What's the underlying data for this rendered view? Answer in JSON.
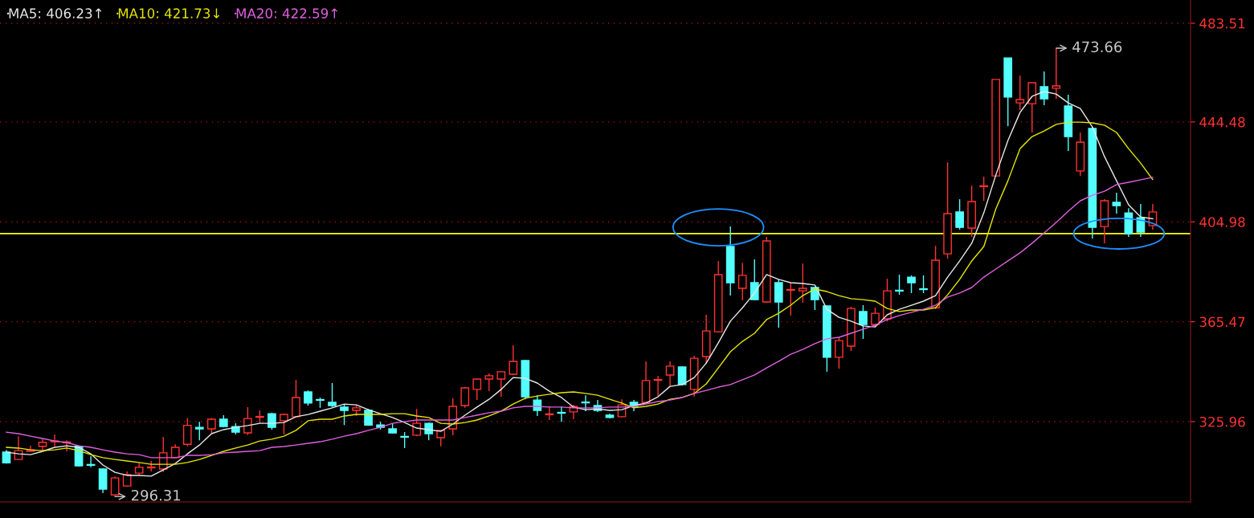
{
  "chart_data": {
    "type": "candlestick",
    "categories": [
      null,
      null,
      null,
      null,
      null,
      null,
      null,
      null,
      null,
      null,
      null,
      null,
      null,
      null,
      null,
      null,
      null,
      null,
      null,
      null,
      null,
      null,
      null,
      null,
      null,
      null,
      null,
      null,
      null,
      null,
      null,
      null,
      null,
      null,
      null,
      null,
      null,
      null,
      null,
      null,
      null,
      null,
      null,
      null,
      null,
      null,
      null,
      null,
      null,
      null,
      null,
      null,
      null,
      null,
      null,
      null,
      null,
      null,
      null,
      null,
      null,
      null,
      null,
      null,
      null,
      null,
      null,
      null,
      null,
      null,
      null,
      null,
      null,
      null,
      null,
      null,
      null,
      null,
      null,
      null,
      null,
      null,
      null,
      null,
      null,
      null,
      null,
      null,
      null,
      null,
      null,
      null,
      null,
      null,
      null,
      null
    ],
    "ohlc": [
      [
        313.9,
        314.8,
        309.4,
        309.7
      ],
      [
        311.0,
        320.2,
        310.7,
        314.5
      ],
      [
        314.2,
        316.5,
        313.9,
        314.8
      ],
      [
        316.2,
        319.0,
        314.5,
        317.8
      ],
      [
        318.0,
        320.9,
        316.2,
        318.3
      ],
      [
        317.6,
        318.6,
        314.2,
        317.9
      ],
      [
        316.2,
        316.5,
        308.2,
        308.5
      ],
      [
        309.0,
        312.3,
        307.9,
        308.7
      ],
      [
        307.2,
        307.5,
        297.7,
        299.3
      ],
      [
        297.0,
        304.3,
        296.31,
        303.7
      ],
      [
        300.5,
        306.3,
        300.2,
        305.0
      ],
      [
        305.6,
        309.8,
        304.7,
        307.9
      ],
      [
        307.7,
        310.4,
        306.3,
        308.0
      ],
      [
        307.2,
        319.9,
        306.0,
        313.6
      ],
      [
        311.7,
        317.0,
        311.4,
        315.8
      ],
      [
        317.0,
        327.4,
        316.2,
        324.5
      ],
      [
        323.7,
        325.9,
        318.6,
        323.1
      ],
      [
        323.1,
        327.4,
        321.5,
        326.9
      ],
      [
        326.9,
        328.5,
        323.7,
        324.0
      ],
      [
        324.0,
        325.3,
        320.9,
        321.8
      ],
      [
        321.5,
        331.7,
        320.6,
        327.2
      ],
      [
        327.7,
        330.4,
        325.3,
        328.0
      ],
      [
        329.1,
        329.5,
        322.8,
        323.7
      ],
      [
        326.3,
        329.1,
        320.9,
        328.8
      ],
      [
        327.9,
        342.5,
        327.6,
        335.5
      ],
      [
        337.7,
        338.3,
        332.3,
        333.3
      ],
      [
        334.7,
        335.5,
        331.4,
        334.4
      ],
      [
        333.6,
        341.2,
        331.7,
        332.3
      ],
      [
        331.7,
        332.9,
        324.6,
        330.4
      ],
      [
        330.4,
        332.6,
        328.2,
        331.4
      ],
      [
        330.4,
        331.0,
        324.3,
        324.6
      ],
      [
        324.6,
        325.9,
        322.8,
        323.7
      ],
      [
        323.1,
        325.3,
        321.2,
        321.5
      ],
      [
        320.1,
        321.8,
        315.5,
        319.8
      ],
      [
        320.6,
        331.0,
        320.2,
        325.3
      ],
      [
        325.3,
        325.6,
        318.6,
        321.2
      ],
      [
        319.6,
        322.8,
        316.2,
        322.5
      ],
      [
        323.1,
        335.2,
        320.6,
        332.0
      ],
      [
        332.3,
        339.6,
        331.4,
        339.3
      ],
      [
        338.7,
        343.1,
        334.5,
        342.8
      ],
      [
        342.8,
        345.0,
        338.0,
        344.1
      ],
      [
        342.8,
        346.0,
        335.8,
        345.7
      ],
      [
        344.7,
        356.1,
        344.4,
        349.8
      ],
      [
        350.1,
        350.4,
        334.8,
        335.8
      ],
      [
        334.5,
        336.4,
        328.2,
        330.4
      ],
      [
        328.7,
        332.0,
        326.6,
        329.0
      ],
      [
        329.6,
        332.0,
        325.9,
        329.3
      ],
      [
        329.8,
        332.6,
        326.9,
        332.0
      ],
      [
        333.7,
        336.4,
        330.1,
        333.4
      ],
      [
        332.3,
        334.5,
        329.8,
        330.4
      ],
      [
        328.5,
        329.1,
        327.2,
        327.6
      ],
      [
        327.9,
        334.8,
        327.6,
        332.6
      ],
      [
        333.6,
        334.5,
        330.1,
        332.0
      ],
      [
        333.6,
        349.8,
        333.3,
        342.2
      ],
      [
        342.3,
        344.1,
        336.1,
        342.6
      ],
      [
        344.4,
        349.8,
        339.9,
        347.9
      ],
      [
        347.6,
        347.9,
        340.3,
        340.6
      ],
      [
        338.7,
        352.0,
        335.8,
        351.0
      ],
      [
        351.7,
        368.2,
        348.8,
        361.8
      ],
      [
        361.5,
        389.5,
        361.2,
        384.1
      ],
      [
        395.2,
        403.1,
        375.8,
        380.9
      ],
      [
        378.7,
        388.8,
        373.9,
        383.8
      ],
      [
        380.9,
        390.1,
        373.9,
        374.2
      ],
      [
        373.3,
        399.0,
        373.0,
        397.4
      ],
      [
        380.9,
        382.2,
        363.1,
        373.3
      ],
      [
        377.9,
        380.9,
        367.9,
        378.2
      ],
      [
        377.7,
        388.5,
        373.0,
        378.7
      ],
      [
        379.0,
        379.3,
        370.1,
        374.2
      ],
      [
        371.7,
        372.0,
        345.7,
        351.4
      ],
      [
        351.4,
        359.3,
        346.9,
        358.0
      ],
      [
        355.8,
        371.4,
        353.9,
        370.7
      ],
      [
        369.5,
        372.0,
        358.7,
        364.4
      ],
      [
        364.4,
        371.0,
        363.4,
        368.8
      ],
      [
        366.6,
        382.5,
        365.7,
        377.7
      ],
      [
        377.9,
        384.1,
        376.1,
        377.6
      ],
      [
        383.1,
        383.8,
        376.8,
        380.9
      ],
      [
        378.5,
        383.8,
        376.8,
        378.2
      ],
      [
        371.0,
        395.5,
        370.4,
        389.8
      ],
      [
        392.3,
        428.5,
        390.4,
        408.2
      ],
      [
        408.9,
        413.9,
        401.9,
        402.8
      ],
      [
        402.5,
        419.3,
        399.0,
        413.0
      ],
      [
        418.9,
        422.8,
        413.3,
        419.2
      ],
      [
        423.1,
        461.3,
        422.8,
        461.3
      ],
      [
        469.8,
        469.8,
        442.8,
        454.3
      ],
      [
        452.0,
        462.8,
        449.2,
        453.3
      ],
      [
        451.7,
        460.0,
        440.3,
        460.0
      ],
      [
        458.4,
        464.4,
        451.1,
        453.6
      ],
      [
        457.8,
        473.66,
        453.6,
        458.7
      ],
      [
        450.8,
        455.2,
        433.0,
        438.7
      ],
      [
        425.1,
        440.3,
        423.1,
        436.5
      ],
      [
        441.9,
        442.5,
        398.4,
        402.8
      ],
      [
        403.1,
        413.9,
        396.5,
        413.3
      ],
      [
        412.7,
        416.5,
        408.2,
        411.4
      ],
      [
        408.5,
        410.4,
        399.0,
        400.3
      ],
      [
        406.6,
        412.0,
        399.0,
        400.9
      ],
      [
        403.5,
        412.0,
        401.9,
        408.9
      ]
    ],
    "colors": [
      "#54ffff",
      "#ff3232",
      "#ff3232",
      "#ff3232",
      "#ff3232",
      "#ff3232",
      "#54ffff",
      "#54ffff",
      "#54ffff",
      "#ff3232",
      "#ff3232",
      "#ff3232",
      "#ff3232",
      "#ff3232",
      "#ff3232",
      "#ff3232",
      "#54ffff",
      "#ff3232",
      "#54ffff",
      "#54ffff",
      "#ff3232",
      "#ff3232",
      "#54ffff",
      "#ff3232",
      "#ff3232",
      "#54ffff",
      "#54ffff",
      "#54ffff",
      "#54ffff",
      "#ff3232",
      "#54ffff",
      "#54ffff",
      "#54ffff",
      "#54ffff",
      "#ff3232",
      "#54ffff",
      "#ff3232",
      "#ff3232",
      "#ff3232",
      "#ff3232",
      "#ff3232",
      "#ff3232",
      "#ff3232",
      "#54ffff",
      "#54ffff",
      "#ff3232",
      "#54ffff",
      "#ff3232",
      "#54ffff",
      "#54ffff",
      "#54ffff",
      "#ff3232",
      "#54ffff",
      "#ff3232",
      "#ff3232",
      "#ff3232",
      "#54ffff",
      "#ff3232",
      "#ff3232",
      "#ff3232",
      "#54ffff",
      "#ff3232",
      "#54ffff",
      "#ff3232",
      "#54ffff",
      "#ff3232",
      "#ff3232",
      "#54ffff",
      "#54ffff",
      "#ff3232",
      "#ff3232",
      "#54ffff",
      "#ff3232",
      "#ff3232",
      "#54ffff",
      "#54ffff",
      "#54ffff",
      "#ff3232",
      "#ff3232",
      "#54ffff",
      "#ff3232",
      "#ff3232",
      "#ff3232",
      "#54ffff",
      "#ff3232",
      "#ff3232",
      "#54ffff",
      "#ff3232",
      "#54ffff",
      "#ff3232",
      "#54ffff",
      "#ff3232",
      "#54ffff",
      "#54ffff",
      "#54ffff",
      "#ff3232"
    ],
    "series": [
      {
        "name": "MA5: 406.23↑",
        "type": "line",
        "color": "#e8e8e8",
        "values": [
          313.9,
          313.2,
          312.9,
          314.2,
          315.8,
          316.4,
          315.8,
          313.2,
          308.8,
          305.9,
          304.7,
          304.7,
          304.4,
          306.9,
          309.4,
          313.2,
          316.7,
          321.2,
          322.8,
          323.7,
          324.4,
          325.3,
          325.3,
          325.6,
          327.9,
          328.8,
          330.1,
          331.4,
          332.9,
          332.6,
          330.7,
          329.1,
          327.6,
          325.6,
          323.4,
          322.8,
          322.1,
          325.0,
          328.5,
          331.7,
          334.8,
          338.7,
          343.4,
          343.1,
          341.2,
          338.0,
          335.5,
          331.7,
          330.7,
          331.0,
          330.4,
          330.7,
          332.3,
          333.3,
          335.8,
          339.9,
          340.6,
          343.4,
          349.1,
          357.1,
          365.7,
          371.0,
          376.8,
          384.1,
          382.2,
          380.9,
          380.6,
          380.0,
          370.4,
          367.2,
          365.7,
          363.8,
          363.4,
          368.2,
          370.4,
          372.0,
          373.6,
          375.8,
          383.1,
          389.5,
          396.5,
          408.5,
          423.5,
          437.1,
          448.2,
          454.6,
          456.5,
          455.5,
          452.0,
          449.8,
          442.5,
          430.8,
          421.2,
          411.7,
          406.9,
          406.2
        ]
      },
      {
        "name": "MA10: 421.73↓",
        "type": "line",
        "color": "#e6e600",
        "values": [
          315.8,
          315.5,
          314.8,
          314.5,
          314.8,
          315.5,
          314.5,
          312.9,
          311.7,
          311.0,
          310.4,
          309.8,
          309.1,
          309.1,
          309.1,
          309.8,
          311.0,
          312.6,
          314.2,
          315.5,
          316.7,
          318.3,
          319.0,
          320.2,
          322.5,
          326.3,
          326.9,
          326.9,
          328.2,
          328.8,
          328.8,
          328.8,
          329.1,
          329.1,
          328.2,
          327.6,
          325.3,
          325.0,
          325.6,
          326.6,
          328.2,
          330.1,
          332.9,
          335.2,
          336.1,
          336.8,
          337.4,
          337.7,
          337.1,
          336.4,
          334.8,
          333.3,
          331.4,
          332.0,
          332.9,
          334.8,
          335.5,
          337.1,
          340.9,
          347.2,
          353.6,
          357.7,
          360.9,
          366.3,
          368.8,
          372.0,
          375.8,
          378.4,
          377.4,
          375.8,
          374.6,
          374.2,
          373.6,
          370.7,
          369.5,
          370.1,
          370.1,
          371.0,
          376.1,
          382.2,
          389.5,
          395.2,
          410.1,
          421.2,
          433.9,
          438.7,
          440.9,
          443.5,
          444.4,
          444.4,
          444.1,
          443.2,
          440.3,
          433.9,
          428.2,
          421.7
        ]
      },
      {
        "name": "MA20: 422.59↑",
        "type": "line",
        "color": "#e060e0",
        "values": [
          321.8,
          321.2,
          320.2,
          319.3,
          318.3,
          317.7,
          316.4,
          315.8,
          314.8,
          313.9,
          313.2,
          312.9,
          311.7,
          311.7,
          311.7,
          312.6,
          312.6,
          312.9,
          313.6,
          313.9,
          314.2,
          314.5,
          315.8,
          316.1,
          316.7,
          317.4,
          318.0,
          319.0,
          320.2,
          321.2,
          322.5,
          323.7,
          325.3,
          326.0,
          326.6,
          326.6,
          326.6,
          326.6,
          327.6,
          328.5,
          329.5,
          330.1,
          331.4,
          332.0,
          332.0,
          331.7,
          331.7,
          331.4,
          331.4,
          331.4,
          331.7,
          331.7,
          332.0,
          332.9,
          333.9,
          334.5,
          335.5,
          337.1,
          338.3,
          339.6,
          340.6,
          342.5,
          344.4,
          347.2,
          349.8,
          352.6,
          354.5,
          356.8,
          358.7,
          359.3,
          360.9,
          362.5,
          364.1,
          366.3,
          367.9,
          369.2,
          370.4,
          372.0,
          375.2,
          376.8,
          379.0,
          383.1,
          386.3,
          389.5,
          392.7,
          396.5,
          400.6,
          404.7,
          409.2,
          413.3,
          415.5,
          417.1,
          419.7,
          420.6,
          421.6,
          422.6
        ]
      }
    ],
    "ylim": [
      294.2,
      492.7
    ],
    "yticks": [
      325.96,
      365.47,
      404.98,
      444.48,
      483.51
    ],
    "grid": "y",
    "legend": "top left",
    "ref_lines": [
      {
        "axis": "y",
        "value": 400.3,
        "color": "#ffff00"
      }
    ],
    "annotations": [
      "473.66",
      "296.31"
    ]
  }
}
